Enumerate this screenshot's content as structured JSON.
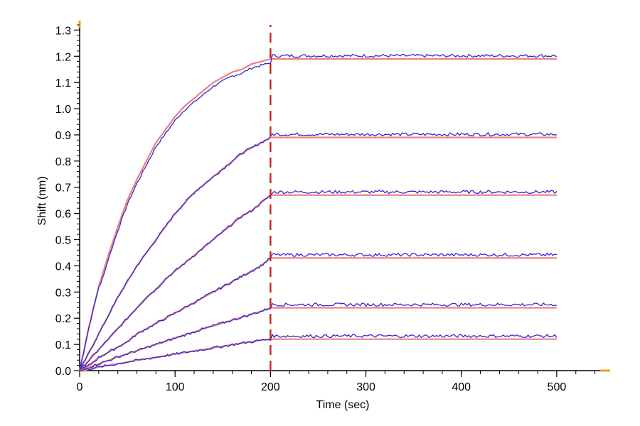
{
  "chart_data": {
    "type": "line",
    "title": "",
    "xlabel": "Time (sec)",
    "ylabel": "Shift (nm)",
    "xlim": [
      0,
      550
    ],
    "ylim": [
      0,
      1.32
    ],
    "x_ticks": [
      0,
      100,
      200,
      300,
      400,
      500
    ],
    "y_ticks": [
      0.0,
      0.1,
      0.2,
      0.3,
      0.4,
      0.5,
      0.6,
      0.7,
      0.8,
      0.9,
      1.0,
      1.1,
      1.2,
      1.3
    ],
    "x_tick_labels": [
      "0",
      "100",
      "200",
      "300",
      "400",
      "500"
    ],
    "y_tick_labels": [
      "0.0",
      "0.1",
      "0.2",
      "0.3",
      "0.4",
      "0.5",
      "0.6",
      "0.7",
      "0.8",
      "0.9",
      "1.0",
      "1.1",
      "1.2",
      "1.3"
    ],
    "dissociation_start_x": 200,
    "colors": {
      "measured": "#2a2ad0",
      "fit": "#f08080",
      "marker_line": "#cc2222",
      "axis_end": "#f0a020"
    },
    "series": [
      {
        "x": [
          0,
          10,
          20,
          30,
          40,
          50,
          60,
          70,
          80,
          90,
          100,
          110,
          120,
          130,
          140,
          150,
          160,
          170,
          180,
          190,
          200,
          250,
          300,
          350,
          400,
          450,
          500
        ],
        "y": [
          0,
          0.17,
          0.32,
          0.44,
          0.55,
          0.65,
          0.73,
          0.8,
          0.87,
          0.92,
          0.97,
          1.01,
          1.04,
          1.07,
          1.1,
          1.12,
          1.14,
          1.15,
          1.17,
          1.18,
          1.19,
          1.19,
          1.19,
          1.19,
          1.19,
          1.19,
          1.19
        ]
      },
      {
        "x": [
          0,
          10,
          20,
          30,
          40,
          50,
          60,
          70,
          80,
          90,
          100,
          110,
          120,
          130,
          140,
          150,
          160,
          170,
          180,
          190,
          200,
          250,
          300,
          350,
          400,
          450,
          500
        ],
        "y": [
          0,
          0.07,
          0.14,
          0.21,
          0.28,
          0.34,
          0.4,
          0.45,
          0.5,
          0.55,
          0.6,
          0.64,
          0.68,
          0.71,
          0.74,
          0.77,
          0.8,
          0.83,
          0.85,
          0.87,
          0.89,
          0.89,
          0.89,
          0.89,
          0.89,
          0.89,
          0.89
        ]
      },
      {
        "x": [
          0,
          10,
          20,
          30,
          40,
          50,
          60,
          70,
          80,
          90,
          100,
          110,
          120,
          130,
          140,
          150,
          160,
          170,
          180,
          190,
          200,
          250,
          300,
          350,
          400,
          450,
          500
        ],
        "y": [
          0,
          0.04,
          0.08,
          0.12,
          0.16,
          0.2,
          0.24,
          0.28,
          0.31,
          0.35,
          0.38,
          0.41,
          0.44,
          0.47,
          0.5,
          0.53,
          0.56,
          0.59,
          0.61,
          0.64,
          0.67,
          0.67,
          0.67,
          0.67,
          0.67,
          0.67,
          0.67
        ]
      },
      {
        "x": [
          0,
          10,
          20,
          30,
          40,
          50,
          60,
          70,
          80,
          90,
          100,
          110,
          120,
          130,
          140,
          150,
          160,
          170,
          180,
          190,
          200,
          250,
          300,
          350,
          400,
          450,
          500
        ],
        "y": [
          0,
          0.02,
          0.05,
          0.07,
          0.09,
          0.11,
          0.14,
          0.16,
          0.18,
          0.2,
          0.22,
          0.24,
          0.26,
          0.28,
          0.3,
          0.32,
          0.34,
          0.36,
          0.38,
          0.4,
          0.43,
          0.43,
          0.43,
          0.43,
          0.43,
          0.43,
          0.43
        ]
      },
      {
        "x": [
          0,
          10,
          20,
          30,
          40,
          50,
          60,
          70,
          80,
          90,
          100,
          110,
          120,
          130,
          140,
          150,
          160,
          170,
          180,
          190,
          200,
          250,
          300,
          350,
          400,
          450,
          500
        ],
        "y": [
          0,
          0.013,
          0.026,
          0.039,
          0.052,
          0.064,
          0.076,
          0.088,
          0.1,
          0.112,
          0.124,
          0.136,
          0.148,
          0.16,
          0.171,
          0.182,
          0.193,
          0.204,
          0.215,
          0.226,
          0.24,
          0.24,
          0.24,
          0.24,
          0.24,
          0.24,
          0.24
        ]
      },
      {
        "x": [
          0,
          10,
          20,
          30,
          40,
          50,
          60,
          70,
          80,
          90,
          100,
          110,
          120,
          130,
          140,
          150,
          160,
          170,
          180,
          190,
          200,
          250,
          300,
          350,
          400,
          450,
          500
        ],
        "y": [
          0,
          0.007,
          0.013,
          0.02,
          0.026,
          0.033,
          0.039,
          0.045,
          0.051,
          0.057,
          0.063,
          0.069,
          0.075,
          0.081,
          0.087,
          0.093,
          0.099,
          0.105,
          0.11,
          0.116,
          0.12,
          0.12,
          0.12,
          0.12,
          0.12,
          0.12,
          0.12
        ]
      }
    ]
  }
}
